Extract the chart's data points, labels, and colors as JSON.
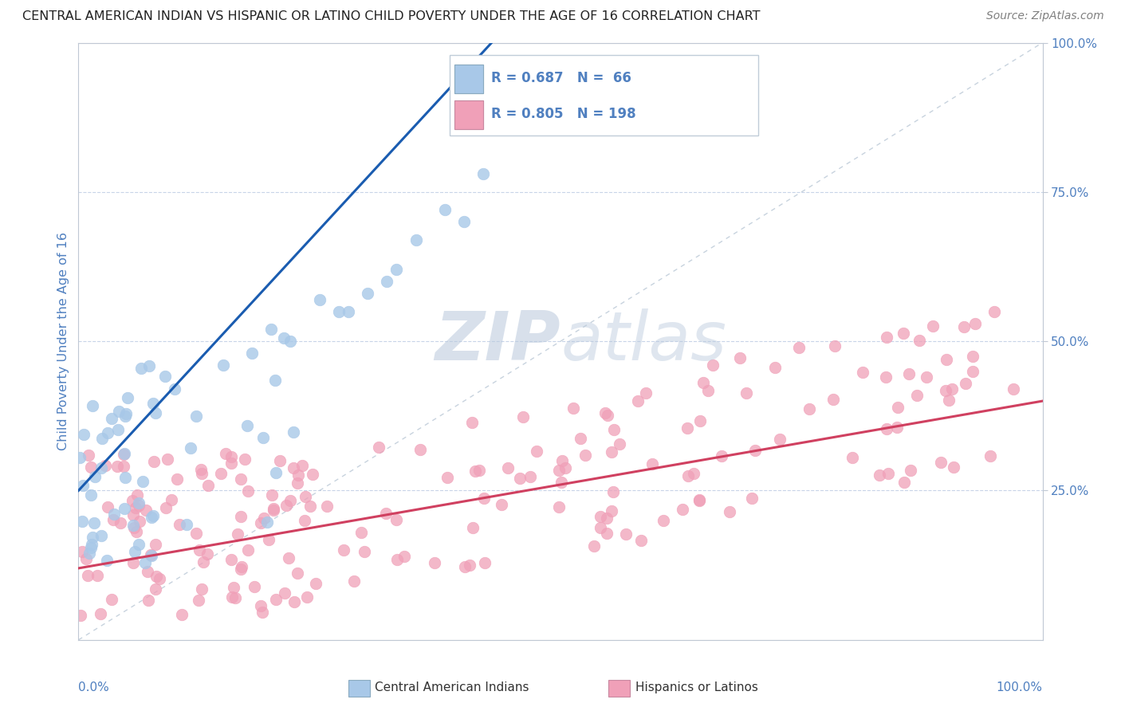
{
  "title": "CENTRAL AMERICAN INDIAN VS HISPANIC OR LATINO CHILD POVERTY UNDER THE AGE OF 16 CORRELATION CHART",
  "source": "Source: ZipAtlas.com",
  "ylabel": "Child Poverty Under the Age of 16",
  "watermark_zip": "ZIP",
  "watermark_atlas": "atlas",
  "legend1_label": "Central American Indians",
  "legend2_label": "Hispanics or Latinos",
  "R1": 0.687,
  "N1": 66,
  "R2": 0.805,
  "N2": 198,
  "blue_scatter_color": "#a8c8e8",
  "blue_line_color": "#1a5cb0",
  "pink_scatter_color": "#f0a0b8",
  "pink_line_color": "#d04060",
  "title_color": "#222222",
  "axis_label_color": "#5080c0",
  "background_color": "#ffffff",
  "grid_color": "#c8d4e8",
  "watermark_color": "#c0d0e4",
  "source_color": "#808080"
}
